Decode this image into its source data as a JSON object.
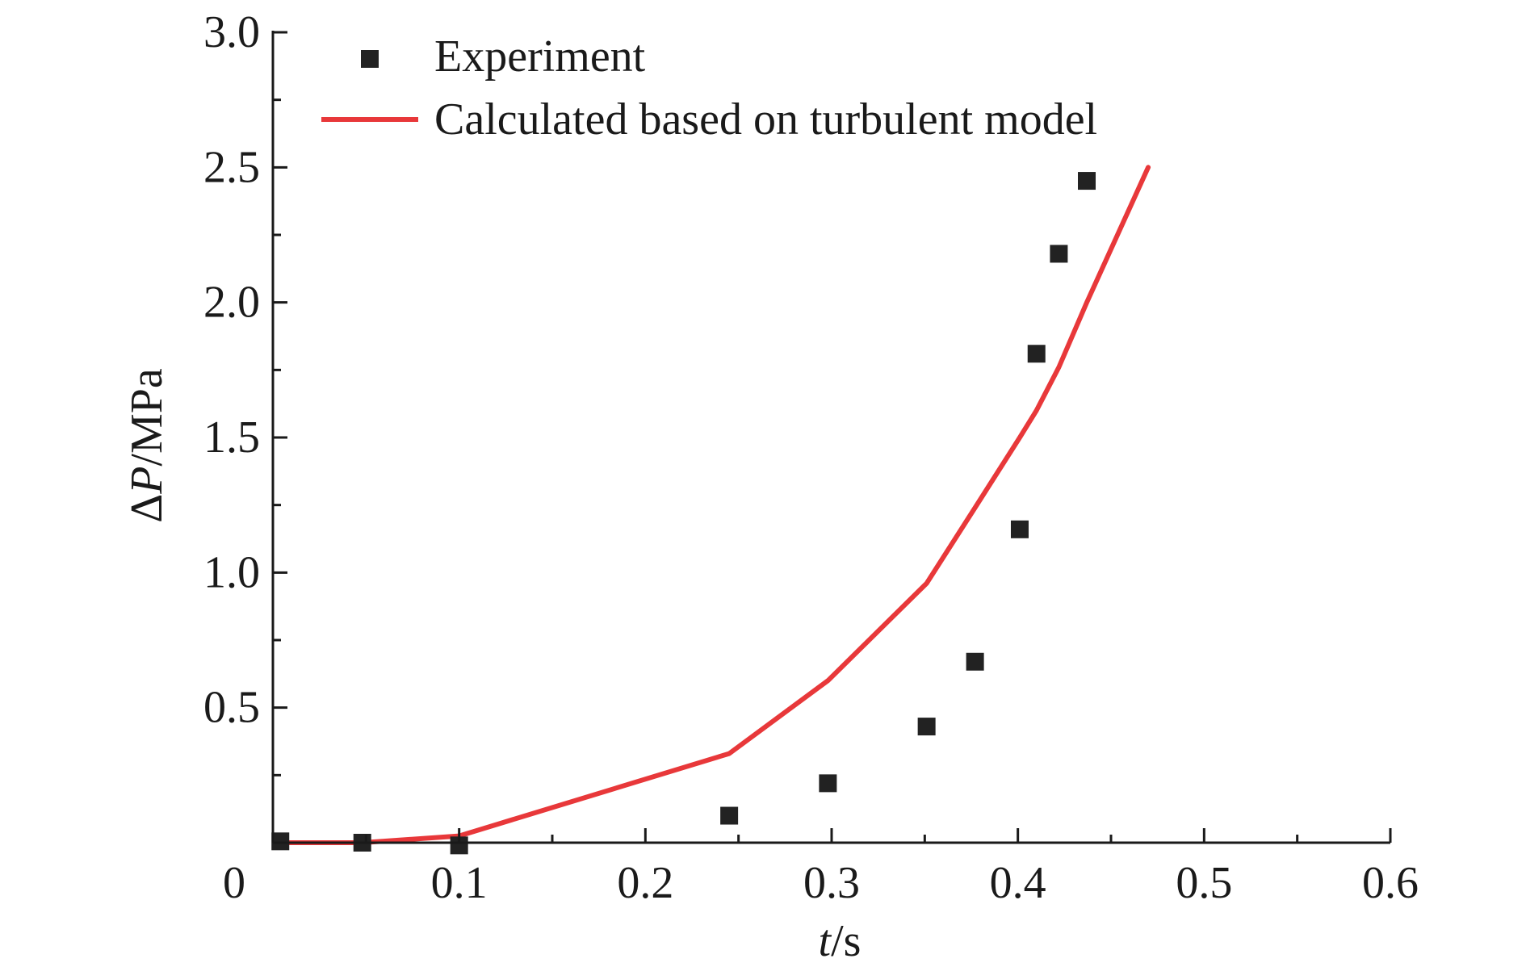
{
  "chart_data": {
    "type": "scatter",
    "title": "",
    "xlabel": {
      "italic": "t",
      "unit": "/s"
    },
    "ylabel": {
      "prefix": "Δ",
      "italic": "P",
      "unit": "/MPa"
    },
    "xlim": [
      0,
      0.6
    ],
    "ylim": [
      0,
      3.0
    ],
    "x_ticks": [
      0.1,
      0.2,
      0.3,
      0.4,
      0.5,
      0.6
    ],
    "x_tick_labels": [
      "0.1",
      "0.2",
      "0.3",
      "0.4",
      "0.5",
      "0.6"
    ],
    "y_ticks": [
      0.5,
      1.0,
      1.5,
      2.0,
      2.5,
      3.0
    ],
    "y_tick_labels": [
      "0.5",
      "1.0",
      "1.5",
      "2.0",
      "2.5",
      "3.0"
    ],
    "origin_label": "0",
    "legend_position": "top-left",
    "grid": false,
    "series": [
      {
        "name": "Experiment",
        "type": "scatter",
        "marker": "square",
        "color": "#222222",
        "x": [
          0.004,
          0.048,
          0.1,
          0.245,
          0.298,
          0.351,
          0.377,
          0.401,
          0.41,
          0.422,
          0.437
        ],
        "y": [
          0.005,
          0.0,
          -0.01,
          0.1,
          0.22,
          0.43,
          0.67,
          1.16,
          1.81,
          2.18,
          2.45
        ]
      },
      {
        "name": "Calculated based on turbulent model",
        "type": "line",
        "color": "#e8383a",
        "x": [
          0.004,
          0.048,
          0.1,
          0.245,
          0.298,
          0.351,
          0.377,
          0.401,
          0.41,
          0.422,
          0.437,
          0.47
        ],
        "y": [
          0.0,
          0.0,
          0.025,
          0.33,
          0.6,
          0.96,
          1.24,
          1.5,
          1.6,
          1.76,
          2.0,
          2.5
        ]
      }
    ]
  }
}
